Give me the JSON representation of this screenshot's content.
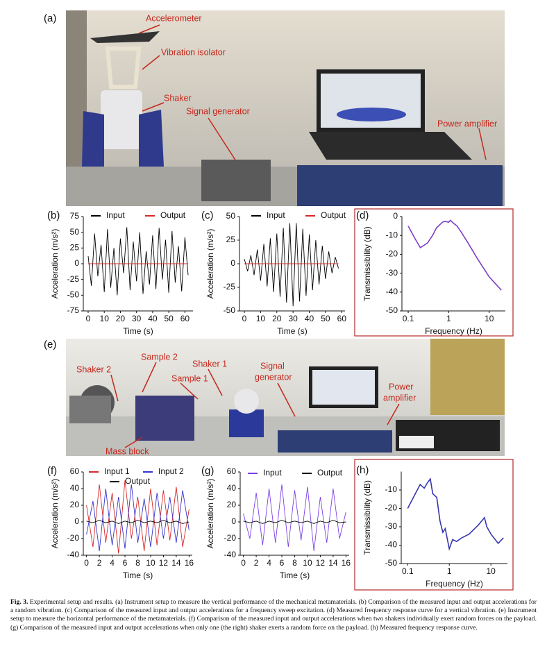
{
  "photos": [
    {
      "panel": "(a)",
      "annotations": [
        [
          "Accelerometer"
        ],
        [
          "Vibration isolator"
        ],
        [
          "Shaker"
        ],
        [
          "Signal generator"
        ],
        [
          "Power amplifier"
        ]
      ]
    },
    {
      "panel": "(e)",
      "annotations": [
        [
          "Shaker 2"
        ],
        [
          "Sample 2"
        ],
        [
          "Shaker 1"
        ],
        [
          "Sample 1"
        ],
        [
          "Signal",
          "generator"
        ],
        [
          "Power",
          "amplifier"
        ],
        [
          "Mass block"
        ]
      ]
    }
  ],
  "chart_data": [
    {
      "type": "line",
      "panel": "(b)",
      "xlabel": "Time (s)",
      "ylabel": "Acceleration (m/s²)",
      "x": [
        0,
        2,
        4,
        6,
        8,
        10,
        12,
        14,
        16,
        18,
        20,
        22,
        24,
        26,
        28,
        30,
        32,
        34,
        36,
        38,
        40,
        42,
        44,
        46,
        48,
        50,
        52,
        54,
        56,
        58,
        60,
        62
      ],
      "series": [
        {
          "name": "Input",
          "color": "#000000",
          "values": [
            12,
            -35,
            48,
            -20,
            30,
            -45,
            55,
            -38,
            25,
            -50,
            40,
            -15,
            58,
            -42,
            35,
            -28,
            50,
            -48,
            20,
            -33,
            45,
            -40,
            57,
            -25,
            38,
            -46,
            52,
            -30,
            28,
            -44,
            42,
            -18
          ]
        },
        {
          "name": "Output",
          "color": "#d62728",
          "values": [
            0,
            0,
            0,
            0,
            0,
            0,
            0,
            0,
            0,
            0,
            0,
            0,
            0,
            0,
            0,
            0,
            0,
            0,
            0,
            0,
            0,
            0,
            0,
            0,
            0,
            0,
            0,
            0,
            0,
            0,
            0,
            0
          ]
        }
      ],
      "xlim": [
        -3,
        65
      ],
      "xticks": [
        0,
        10,
        20,
        30,
        40,
        50,
        60
      ],
      "ylim": [
        -75,
        75
      ],
      "yticks": [
        -75,
        -50,
        -25,
        0,
        25,
        50,
        75
      ]
    },
    {
      "type": "line",
      "panel": "(c)",
      "xlabel": "Time (s)",
      "ylabel": "Acceleration (m/s²)",
      "x": [
        0,
        2,
        4,
        6,
        8,
        10,
        12,
        14,
        16,
        18,
        20,
        22,
        24,
        26,
        28,
        30,
        32,
        34,
        36,
        38,
        40,
        42,
        44,
        46,
        48,
        50,
        52,
        54,
        56,
        58
      ],
      "series": [
        {
          "name": "Input",
          "color": "#000000",
          "values": [
            5,
            -8,
            9,
            -12,
            15,
            -18,
            21,
            -24,
            27,
            -30,
            32,
            -35,
            38,
            -41,
            43,
            -45,
            43,
            -40,
            37,
            -34,
            31,
            -28,
            25,
            -22,
            19,
            -16,
            13,
            -10,
            7,
            -5
          ]
        },
        {
          "name": "Output",
          "color": "#d62728",
          "values": [
            0,
            0,
            0,
            0,
            0,
            0,
            0,
            0,
            0,
            0,
            0,
            0,
            0,
            0,
            0,
            0,
            0,
            0,
            0,
            0,
            0,
            0,
            0,
            0,
            0,
            0,
            0,
            0,
            0,
            0
          ]
        }
      ],
      "xlim": [
        -3,
        62
      ],
      "xticks": [
        0,
        10,
        20,
        30,
        40,
        50,
        60
      ],
      "ylim": [
        -50,
        50
      ],
      "yticks": [
        -50,
        -25,
        0,
        25,
        50
      ]
    },
    {
      "type": "line",
      "panel": "(d)",
      "xlabel": "Frequency (Hz)",
      "ylabel": "Transmissibility (dB)",
      "log_x": true,
      "x": [
        0.1,
        0.15,
        0.2,
        0.3,
        0.4,
        0.5,
        0.7,
        0.8,
        1,
        1.1,
        1.3,
        1.6,
        2,
        3,
        5,
        10,
        20
      ],
      "series": [
        {
          "name": null,
          "color": "#7a3fc9",
          "values": [
            -5,
            -12,
            -16.5,
            -14,
            -10,
            -6,
            -3,
            -2.5,
            -3,
            -2,
            -3.5,
            -5,
            -8,
            -14,
            -22,
            -32,
            -39
          ]
        }
      ],
      "xlim": [
        0.07,
        25
      ],
      "xticks": [
        0.1,
        1,
        10
      ],
      "ylim": [
        -50,
        0
      ],
      "yticks": [
        -50,
        -40,
        -30,
        -20,
        -10,
        0
      ]
    },
    {
      "type": "line",
      "panel": "(f)",
      "xlabel": "Time (s)",
      "ylabel": "Acceleration (m/s²)",
      "x": [
        0,
        1,
        2,
        3,
        4,
        5,
        6,
        7,
        8,
        9,
        10,
        11,
        12,
        13,
        14,
        15,
        16
      ],
      "series": [
        {
          "name": "Input 1",
          "color": "#d62728",
          "values": [
            20,
            -30,
            45,
            -25,
            35,
            -38,
            50,
            -20,
            30,
            -35,
            40,
            -28,
            38,
            -22,
            42,
            -30,
            15
          ]
        },
        {
          "name": "Input 2",
          "color": "#3333cc",
          "values": [
            -15,
            25,
            -35,
            40,
            -28,
            30,
            -32,
            45,
            -25,
            28,
            -30,
            35,
            -20,
            30,
            -25,
            38,
            -10
          ]
        },
        {
          "name": "Output",
          "color": "#000000",
          "values": [
            1,
            -1,
            2,
            -1,
            1,
            -2,
            1,
            -1,
            2,
            -1,
            1,
            -1,
            2,
            -1,
            1,
            -2,
            0
          ]
        }
      ],
      "xlim": [
        -0.5,
        16.5
      ],
      "xticks": [
        0,
        2,
        4,
        6,
        8,
        10,
        12,
        14,
        16
      ],
      "ylim": [
        -40,
        60
      ],
      "yticks": [
        -40,
        -20,
        0,
        20,
        40,
        60
      ]
    },
    {
      "type": "line",
      "panel": "(g)",
      "xlabel": "Time (s)",
      "ylabel": "Acceleration (m/s²)",
      "x": [
        0,
        1,
        2,
        3,
        4,
        5,
        6,
        7,
        8,
        9,
        10,
        11,
        12,
        13,
        14,
        15,
        16
      ],
      "series": [
        {
          "name": "Input",
          "color": "#7b3fe4",
          "values": [
            10,
            -20,
            35,
            -28,
            40,
            -25,
            45,
            -30,
            38,
            -22,
            42,
            -35,
            30,
            -25,
            40,
            -20,
            12
          ]
        },
        {
          "name": "Output",
          "color": "#000000",
          "values": [
            1,
            -1,
            1,
            -2,
            1,
            -1,
            2,
            -1,
            1,
            -1,
            1,
            -2,
            1,
            -1,
            2,
            -1,
            0
          ]
        }
      ],
      "xlim": [
        -0.5,
        16.5
      ],
      "xticks": [
        0,
        2,
        4,
        6,
        8,
        10,
        12,
        14,
        16
      ],
      "ylim": [
        -40,
        60
      ],
      "yticks": [
        -40,
        -20,
        0,
        20,
        40,
        60
      ]
    },
    {
      "type": "line",
      "panel": "(h)",
      "xlabel": "Frequency (Hz)",
      "ylabel": "Transmissibility (dB)",
      "log_x": true,
      "x": [
        0.1,
        0.2,
        0.25,
        0.3,
        0.35,
        0.4,
        0.5,
        0.6,
        0.7,
        0.8,
        1,
        1.2,
        1.5,
        2,
        3,
        5,
        7,
        8,
        10,
        15,
        20
      ],
      "series": [
        {
          "name": null,
          "color": "#3535b0",
          "values": [
            -20,
            -7,
            -9,
            -6,
            -4,
            -12,
            -14,
            -27,
            -33,
            -31,
            -42,
            -37,
            -38,
            -36,
            -34,
            -29,
            -25,
            -30,
            -34,
            -39,
            -36
          ]
        }
      ],
      "xlim": [
        0.07,
        25
      ],
      "xticks": [
        0.1,
        1,
        10
      ],
      "ylim": [
        -50,
        0
      ],
      "yticks": [
        -50,
        -40,
        -30,
        -20,
        -10
      ]
    }
  ],
  "caption": {
    "label": "Fig. 3.",
    "text": "Experimental setup and results. (a) Instrument setup to measure the vertical performance of the mechanical metamaterials. (b) Comparison of the measured input and output accelerations for a random vibration. (c) Comparison of the measured input and output accelerations for a frequency sweep excitation. (d) Measured frequency response curve for a vertical vibration. (e) Instrument setup to measure the horizontal performance of the metamaterials. (f) Comparison of the measured input and output accelerations when two shakers individually exert random forces on the payload. (g) Comparison of the measured input and output accelerations when only one (the right) shaker exerts a random force on the payload. (h) Measured frequency response curve."
  }
}
